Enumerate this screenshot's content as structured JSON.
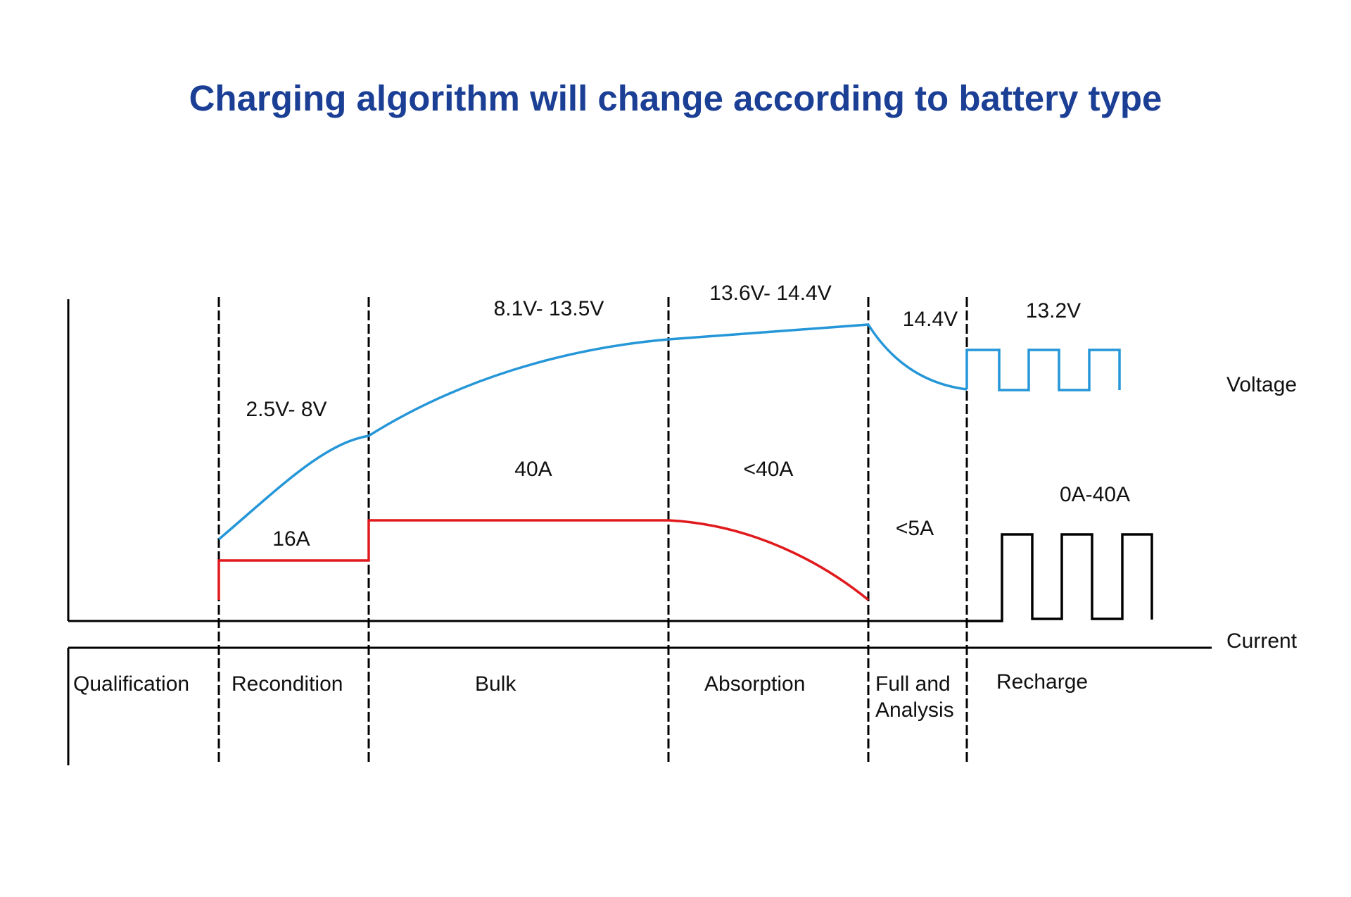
{
  "title": "Charging algorithm will change according to battery type",
  "row_labels": {
    "voltage": "Voltage",
    "current": "Current"
  },
  "stages": [
    {
      "name": "Qualification",
      "voltage": "",
      "current": ""
    },
    {
      "name": "Recondition",
      "voltage": "2.5V- 8V",
      "current": "16A"
    },
    {
      "name": "Bulk",
      "voltage": "8.1V- 13.5V",
      "current": "40A"
    },
    {
      "name": "Absorption",
      "voltage": "13.6V-  14.4V",
      "current": "<40A"
    },
    {
      "name_line1": "Full and",
      "name_line2": "Analysis",
      "voltage": "14.4V",
      "current": "<5A"
    },
    {
      "name": "Recharge",
      "voltage": "13.2V",
      "current": "0A-40A"
    }
  ],
  "colors": {
    "title": "#1c3f96",
    "voltage_curve": "#2596d8",
    "current_curve": "#e0191c",
    "recharge_current_pulse": "#000000"
  }
}
